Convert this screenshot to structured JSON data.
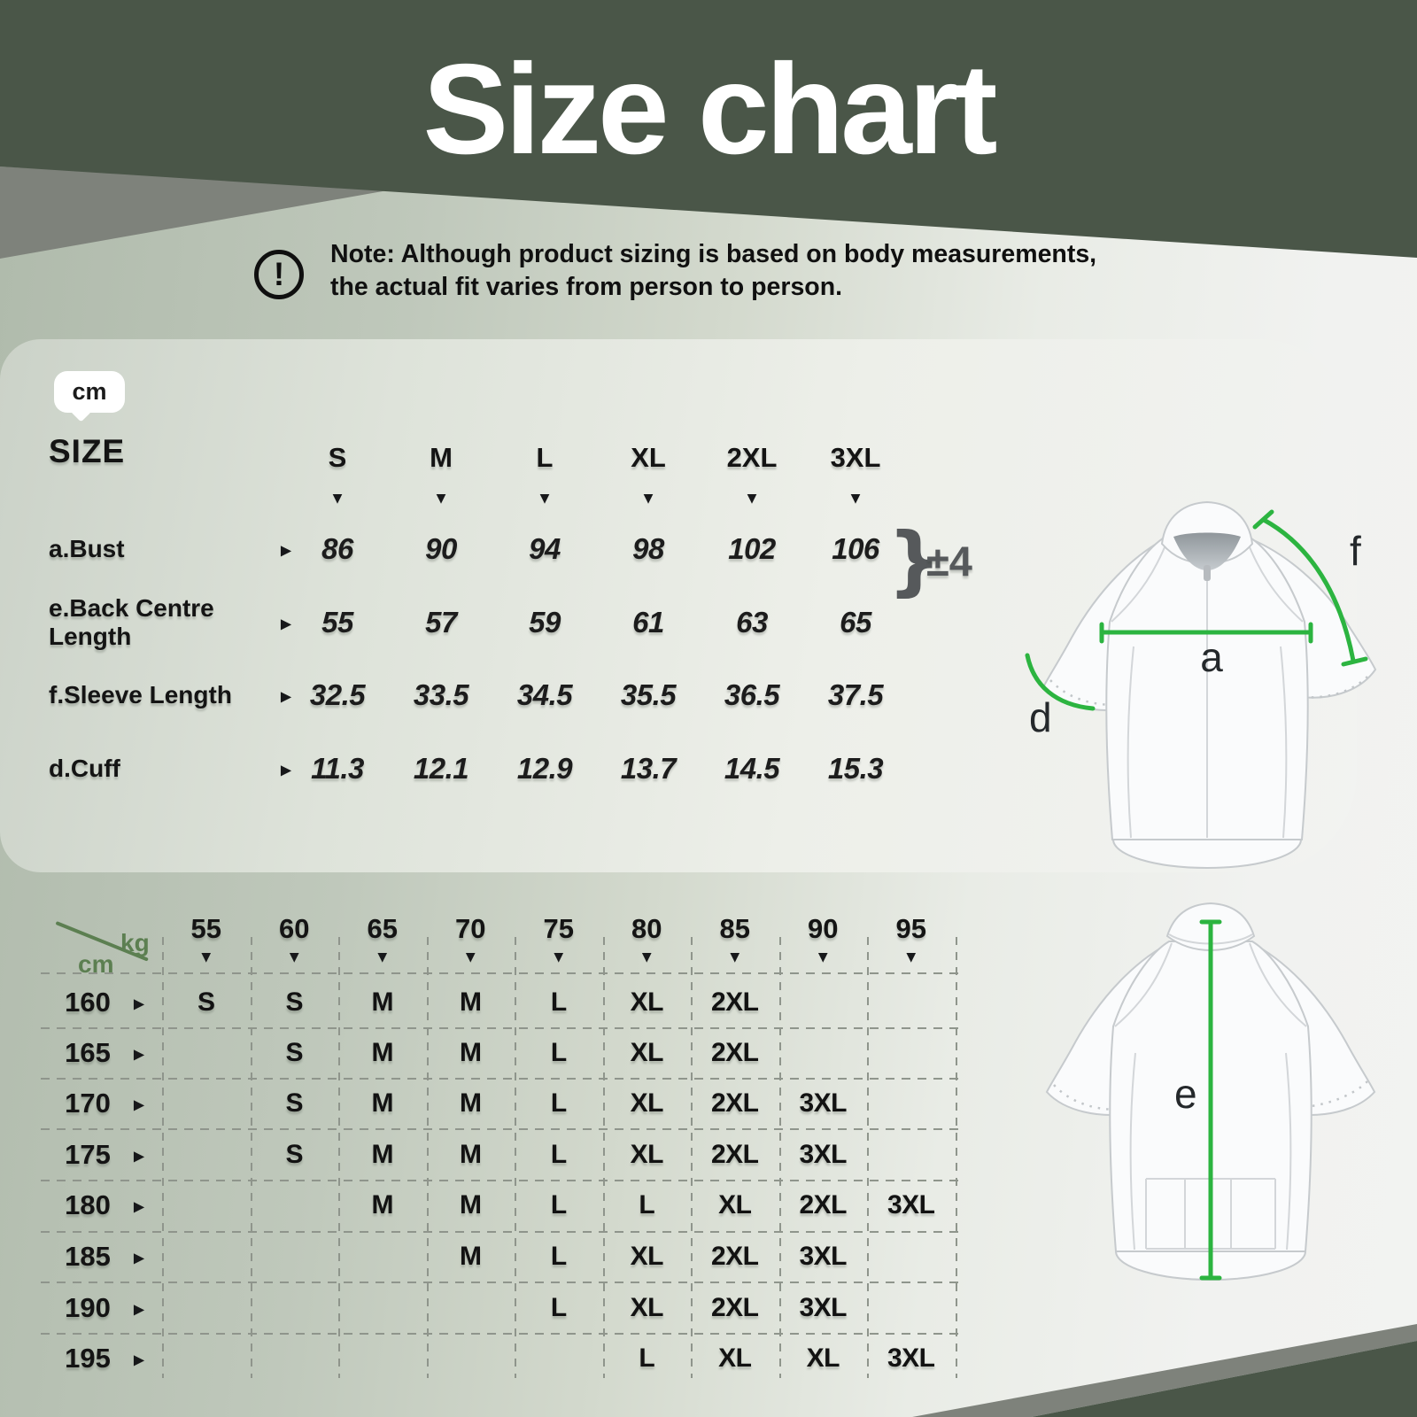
{
  "title": "Size chart",
  "note": {
    "icon": "exclamation-icon",
    "line1": "Note: Although product sizing is based on body measurements,",
    "line2": "the actual fit varies from person to person."
  },
  "unit_badge": "cm",
  "icons": {
    "col_marker": "▼",
    "row_marker": "▶"
  },
  "colors": {
    "header_green": "#4a5648",
    "accent_gray": "#7e827b",
    "sage": "#bfc8bb",
    "measure_green": "#2cb440",
    "axis_green": "#5c7f51",
    "tolerance_gray": "#56595b"
  },
  "size_table": {
    "heading": "SIZE",
    "columns": [
      "S",
      "M",
      "L",
      "XL",
      "2XL",
      "3XL"
    ],
    "rows": [
      {
        "label_lines": [
          "a.Bust"
        ],
        "values": [
          "86",
          "90",
          "94",
          "98",
          "102",
          "106"
        ]
      },
      {
        "label_lines": [
          "e.Back Centre",
          "Length"
        ],
        "values": [
          "55",
          "57",
          "59",
          "61",
          "63",
          "65"
        ]
      },
      {
        "label_lines": [
          "f.Sleeve Length"
        ],
        "values": [
          "32.5",
          "33.5",
          "34.5",
          "35.5",
          "36.5",
          "37.5"
        ]
      },
      {
        "label_lines": [
          "d.Cuff"
        ],
        "values": [
          "11.3",
          "12.1",
          "12.9",
          "13.7",
          "14.5",
          "15.3"
        ]
      }
    ],
    "tolerance_brace": "}",
    "tolerance": "±4"
  },
  "matrix_table": {
    "col_unit": "kg",
    "row_unit": "cm",
    "weight_columns": [
      "55",
      "60",
      "65",
      "70",
      "75",
      "80",
      "85",
      "90",
      "95"
    ],
    "rows": [
      {
        "height": "160",
        "cells": [
          "S",
          "S",
          "M",
          "M",
          "L",
          "XL",
          "2XL",
          "",
          ""
        ]
      },
      {
        "height": "165",
        "cells": [
          "",
          "S",
          "M",
          "M",
          "L",
          "XL",
          "2XL",
          "",
          ""
        ]
      },
      {
        "height": "170",
        "cells": [
          "",
          "S",
          "M",
          "M",
          "L",
          "XL",
          "2XL",
          "3XL",
          ""
        ]
      },
      {
        "height": "175",
        "cells": [
          "",
          "S",
          "M",
          "M",
          "L",
          "XL",
          "2XL",
          "3XL",
          ""
        ]
      },
      {
        "height": "180",
        "cells": [
          "",
          "",
          "M",
          "M",
          "L",
          "L",
          "XL",
          "2XL",
          "3XL"
        ]
      },
      {
        "height": "185",
        "cells": [
          "",
          "",
          "",
          "M",
          "L",
          "XL",
          "2XL",
          "3XL",
          ""
        ]
      },
      {
        "height": "190",
        "cells": [
          "",
          "",
          "",
          "",
          "L",
          "XL",
          "2XL",
          "3XL",
          ""
        ]
      },
      {
        "height": "195",
        "cells": [
          "",
          "",
          "",
          "",
          "",
          "L",
          "XL",
          "XL",
          "3XL"
        ]
      }
    ]
  },
  "diagram": {
    "front": {
      "a": "a",
      "d": "d",
      "f": "f"
    },
    "back": {
      "e": "e"
    }
  },
  "chart_data": [
    {
      "type": "table",
      "title": "Garment measurements (cm)",
      "columns": [
        "S",
        "M",
        "L",
        "XL",
        "2XL",
        "3XL"
      ],
      "rows": [
        {
          "label": "a.Bust",
          "values": [
            86,
            90,
            94,
            98,
            102,
            106
          ],
          "tolerance": "±4"
        },
        {
          "label": "e.Back Centre Length",
          "values": [
            55,
            57,
            59,
            61,
            63,
            65
          ]
        },
        {
          "label": "f.Sleeve Length",
          "values": [
            32.5,
            33.5,
            34.5,
            35.5,
            36.5,
            37.5
          ]
        },
        {
          "label": "d.Cuff",
          "values": [
            11.3,
            12.1,
            12.9,
            13.7,
            14.5,
            15.3
          ]
        }
      ]
    },
    {
      "type": "table",
      "title": "Recommended size by height (cm) and weight (kg)",
      "columns": [
        55,
        60,
        65,
        70,
        75,
        80,
        85,
        90,
        95
      ],
      "rows": [
        {
          "label": 160,
          "values": [
            "S",
            "S",
            "M",
            "M",
            "L",
            "XL",
            "2XL",
            "",
            ""
          ]
        },
        {
          "label": 165,
          "values": [
            "",
            "S",
            "M",
            "M",
            "L",
            "XL",
            "2XL",
            "",
            ""
          ]
        },
        {
          "label": 170,
          "values": [
            "",
            "S",
            "M",
            "M",
            "L",
            "XL",
            "2XL",
            "3XL",
            ""
          ]
        },
        {
          "label": 175,
          "values": [
            "",
            "S",
            "M",
            "M",
            "L",
            "XL",
            "2XL",
            "3XL",
            ""
          ]
        },
        {
          "label": 180,
          "values": [
            "",
            "",
            "M",
            "M",
            "L",
            "L",
            "XL",
            "2XL",
            "3XL"
          ]
        },
        {
          "label": 185,
          "values": [
            "",
            "",
            "",
            "M",
            "L",
            "XL",
            "2XL",
            "3XL",
            ""
          ]
        },
        {
          "label": 190,
          "values": [
            "",
            "",
            "",
            "",
            "L",
            "XL",
            "2XL",
            "3XL",
            ""
          ]
        },
        {
          "label": 195,
          "values": [
            "",
            "",
            "",
            "",
            "",
            "L",
            "XL",
            "XL",
            "3XL"
          ]
        }
      ]
    }
  ]
}
